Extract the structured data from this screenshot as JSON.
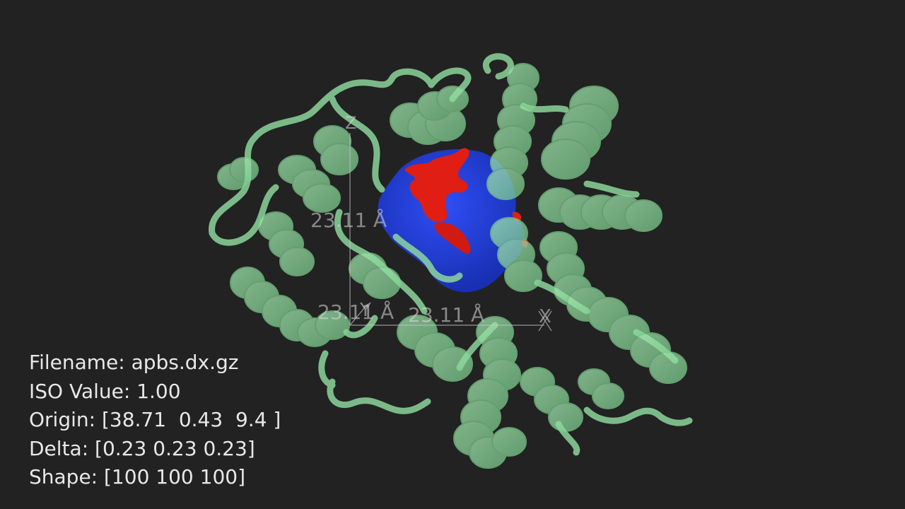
{
  "scene": {
    "background": "#222222",
    "ribbon_color": "#90e0a0",
    "surface_positive_color": "#1e3cd8",
    "surface_negative_color": "#e01e14",
    "axis_color": "#c8c8c8"
  },
  "axes": {
    "z_label": "Z",
    "x_label": "X",
    "y_label": "Y",
    "z_length_label": "23.11 Å",
    "y_length_label": "23.11 Å",
    "x_length_label": "23.11 Å"
  },
  "info": {
    "filename": "Filename: apbs.dx.gz",
    "iso_value": "ISO Value: 1.00",
    "origin": "Origin: [38.71  0.43  9.4 ]",
    "delta": "Delta: [0.23 0.23 0.23]",
    "shape": "Shape: [100 100 100]"
  }
}
